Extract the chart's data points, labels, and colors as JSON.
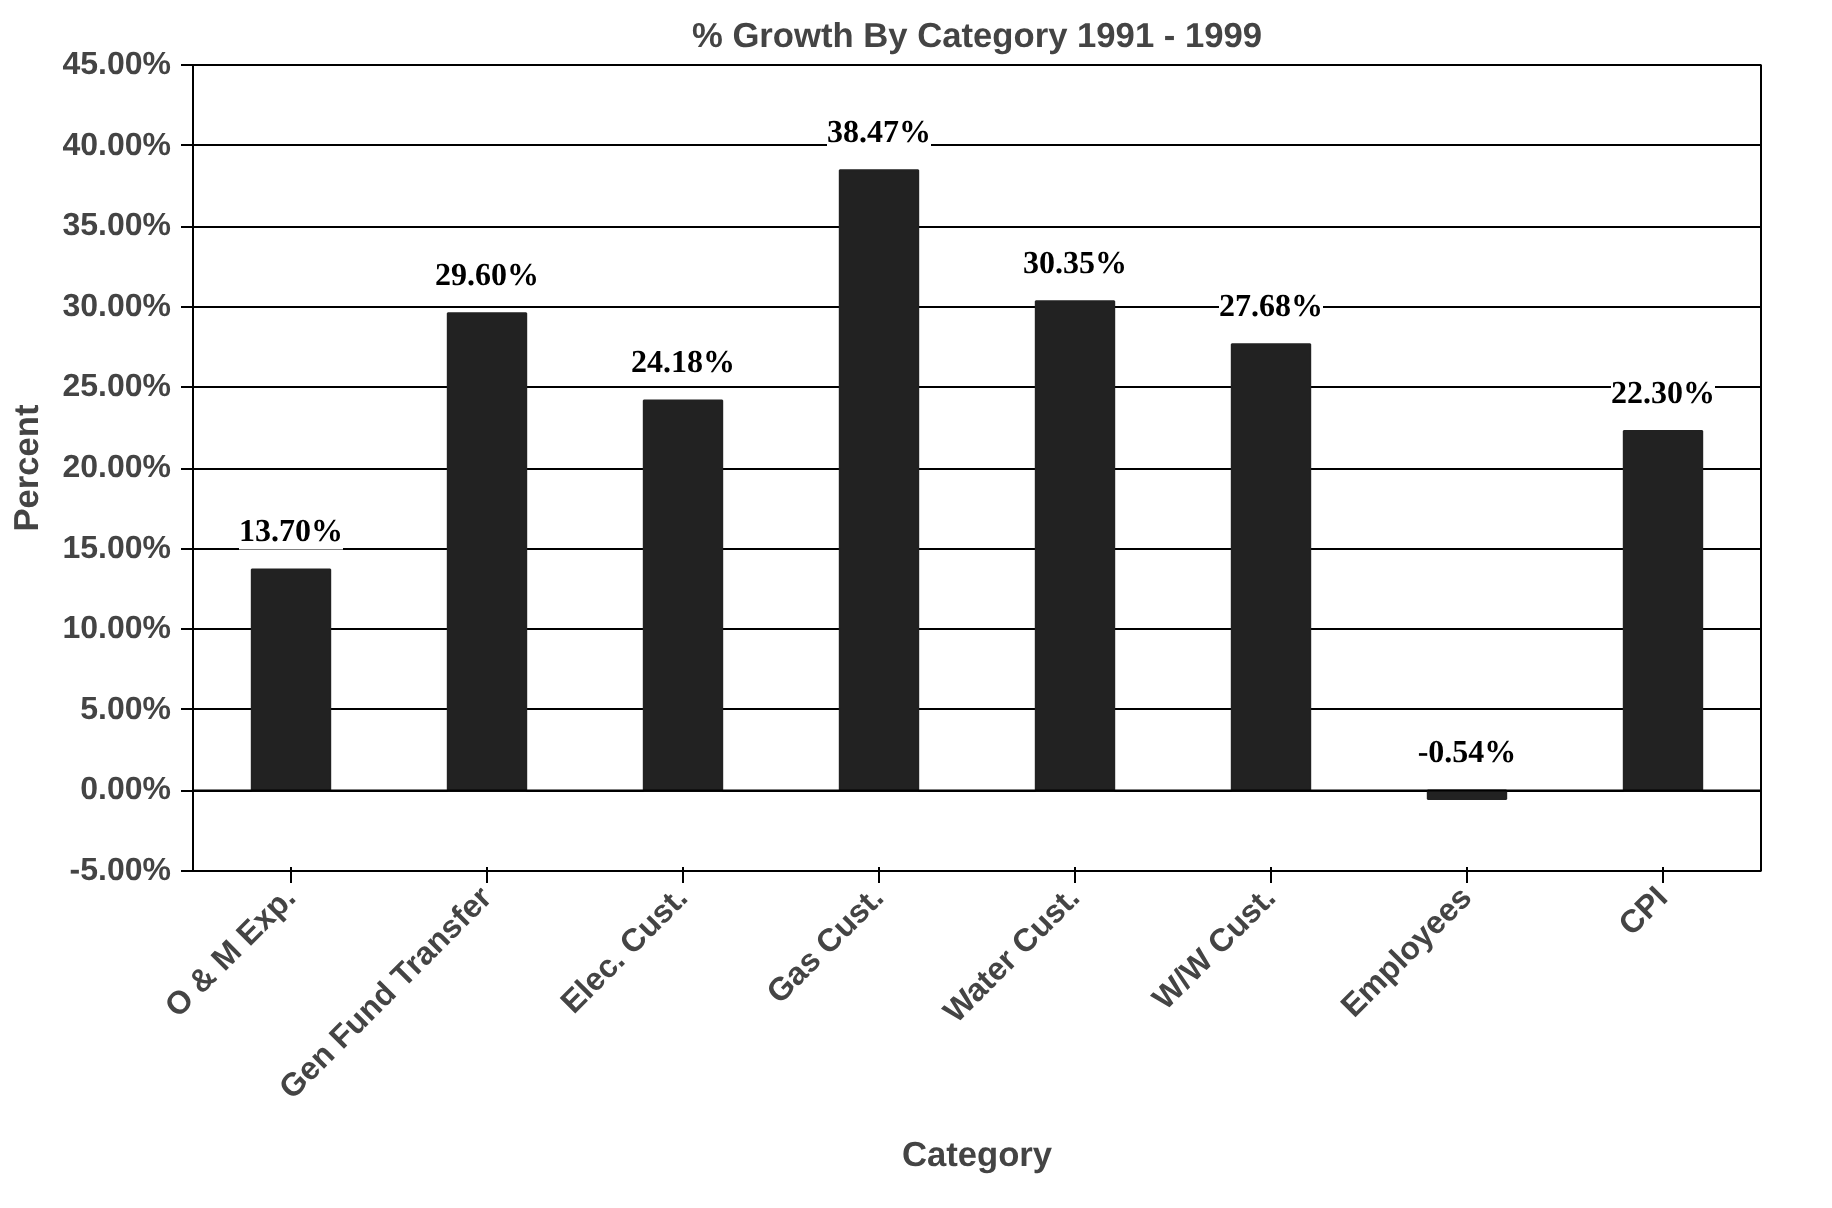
{
  "chart_data": {
    "type": "bar",
    "title": "% Growth By Category 1991 - 1999",
    "xlabel": "Category",
    "ylabel": "Percent",
    "categories": [
      "O & M Exp.",
      "Gen Fund Transfer",
      "Elec. Cust.",
      "Gas Cust.",
      "Water Cust.",
      "W/W Cust.",
      "Employees",
      "CPI"
    ],
    "values": [
      13.7,
      29.6,
      24.18,
      38.47,
      30.35,
      27.68,
      -0.54,
      22.3
    ],
    "value_labels": [
      "13.70%",
      "29.60%",
      "24.18%",
      "38.47%",
      "30.35%",
      "27.68%",
      "-0.54%",
      "22.30%"
    ],
    "color": "#222222",
    "ylim": [
      -5,
      45
    ],
    "yticks": [
      {
        "value": -5,
        "label": "-5.00%"
      },
      {
        "value": 0,
        "label": "0.00%"
      },
      {
        "value": 5,
        "label": "5.00%"
      },
      {
        "value": 10,
        "label": "10.00%"
      },
      {
        "value": 15,
        "label": "15.00%"
      },
      {
        "value": 20,
        "label": "20.00%"
      },
      {
        "value": 25,
        "label": "25.00%"
      },
      {
        "value": 30,
        "label": "30.00%"
      },
      {
        "value": 35,
        "label": "35.00%"
      },
      {
        "value": 40,
        "label": "40.00%"
      },
      {
        "value": 45,
        "label": "45.00%"
      }
    ],
    "grid": "y"
  }
}
